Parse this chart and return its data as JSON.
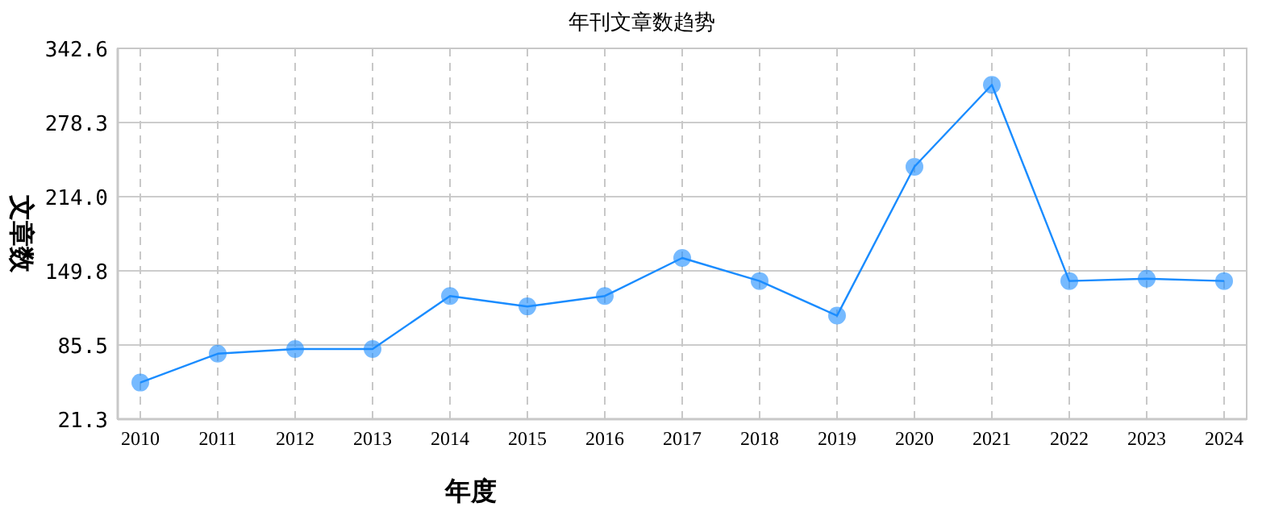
{
  "chart_data": {
    "type": "line",
    "title": "年刊文章数趋势",
    "xlabel": "年度",
    "ylabel": "文章数",
    "categories": [
      "2010",
      "2011",
      "2012",
      "2013",
      "2014",
      "2015",
      "2016",
      "2017",
      "2018",
      "2019",
      "2020",
      "2021",
      "2022",
      "2023",
      "2024"
    ],
    "series": [
      {
        "color": "#1a8cff",
        "values": [
          53,
          78,
          82,
          82,
          128,
          119,
          128,
          161,
          141,
          111,
          240,
          311,
          141,
          143,
          141
        ]
      }
    ],
    "ylim": [
      21.3,
      342.6
    ],
    "yticks": [
      21.3,
      85.5,
      149.8,
      {
        "value": 214.0,
        "label": "214.0"
      },
      278.3,
      342.6
    ],
    "grid": true,
    "marker": "circle",
    "line_style": "solid"
  }
}
